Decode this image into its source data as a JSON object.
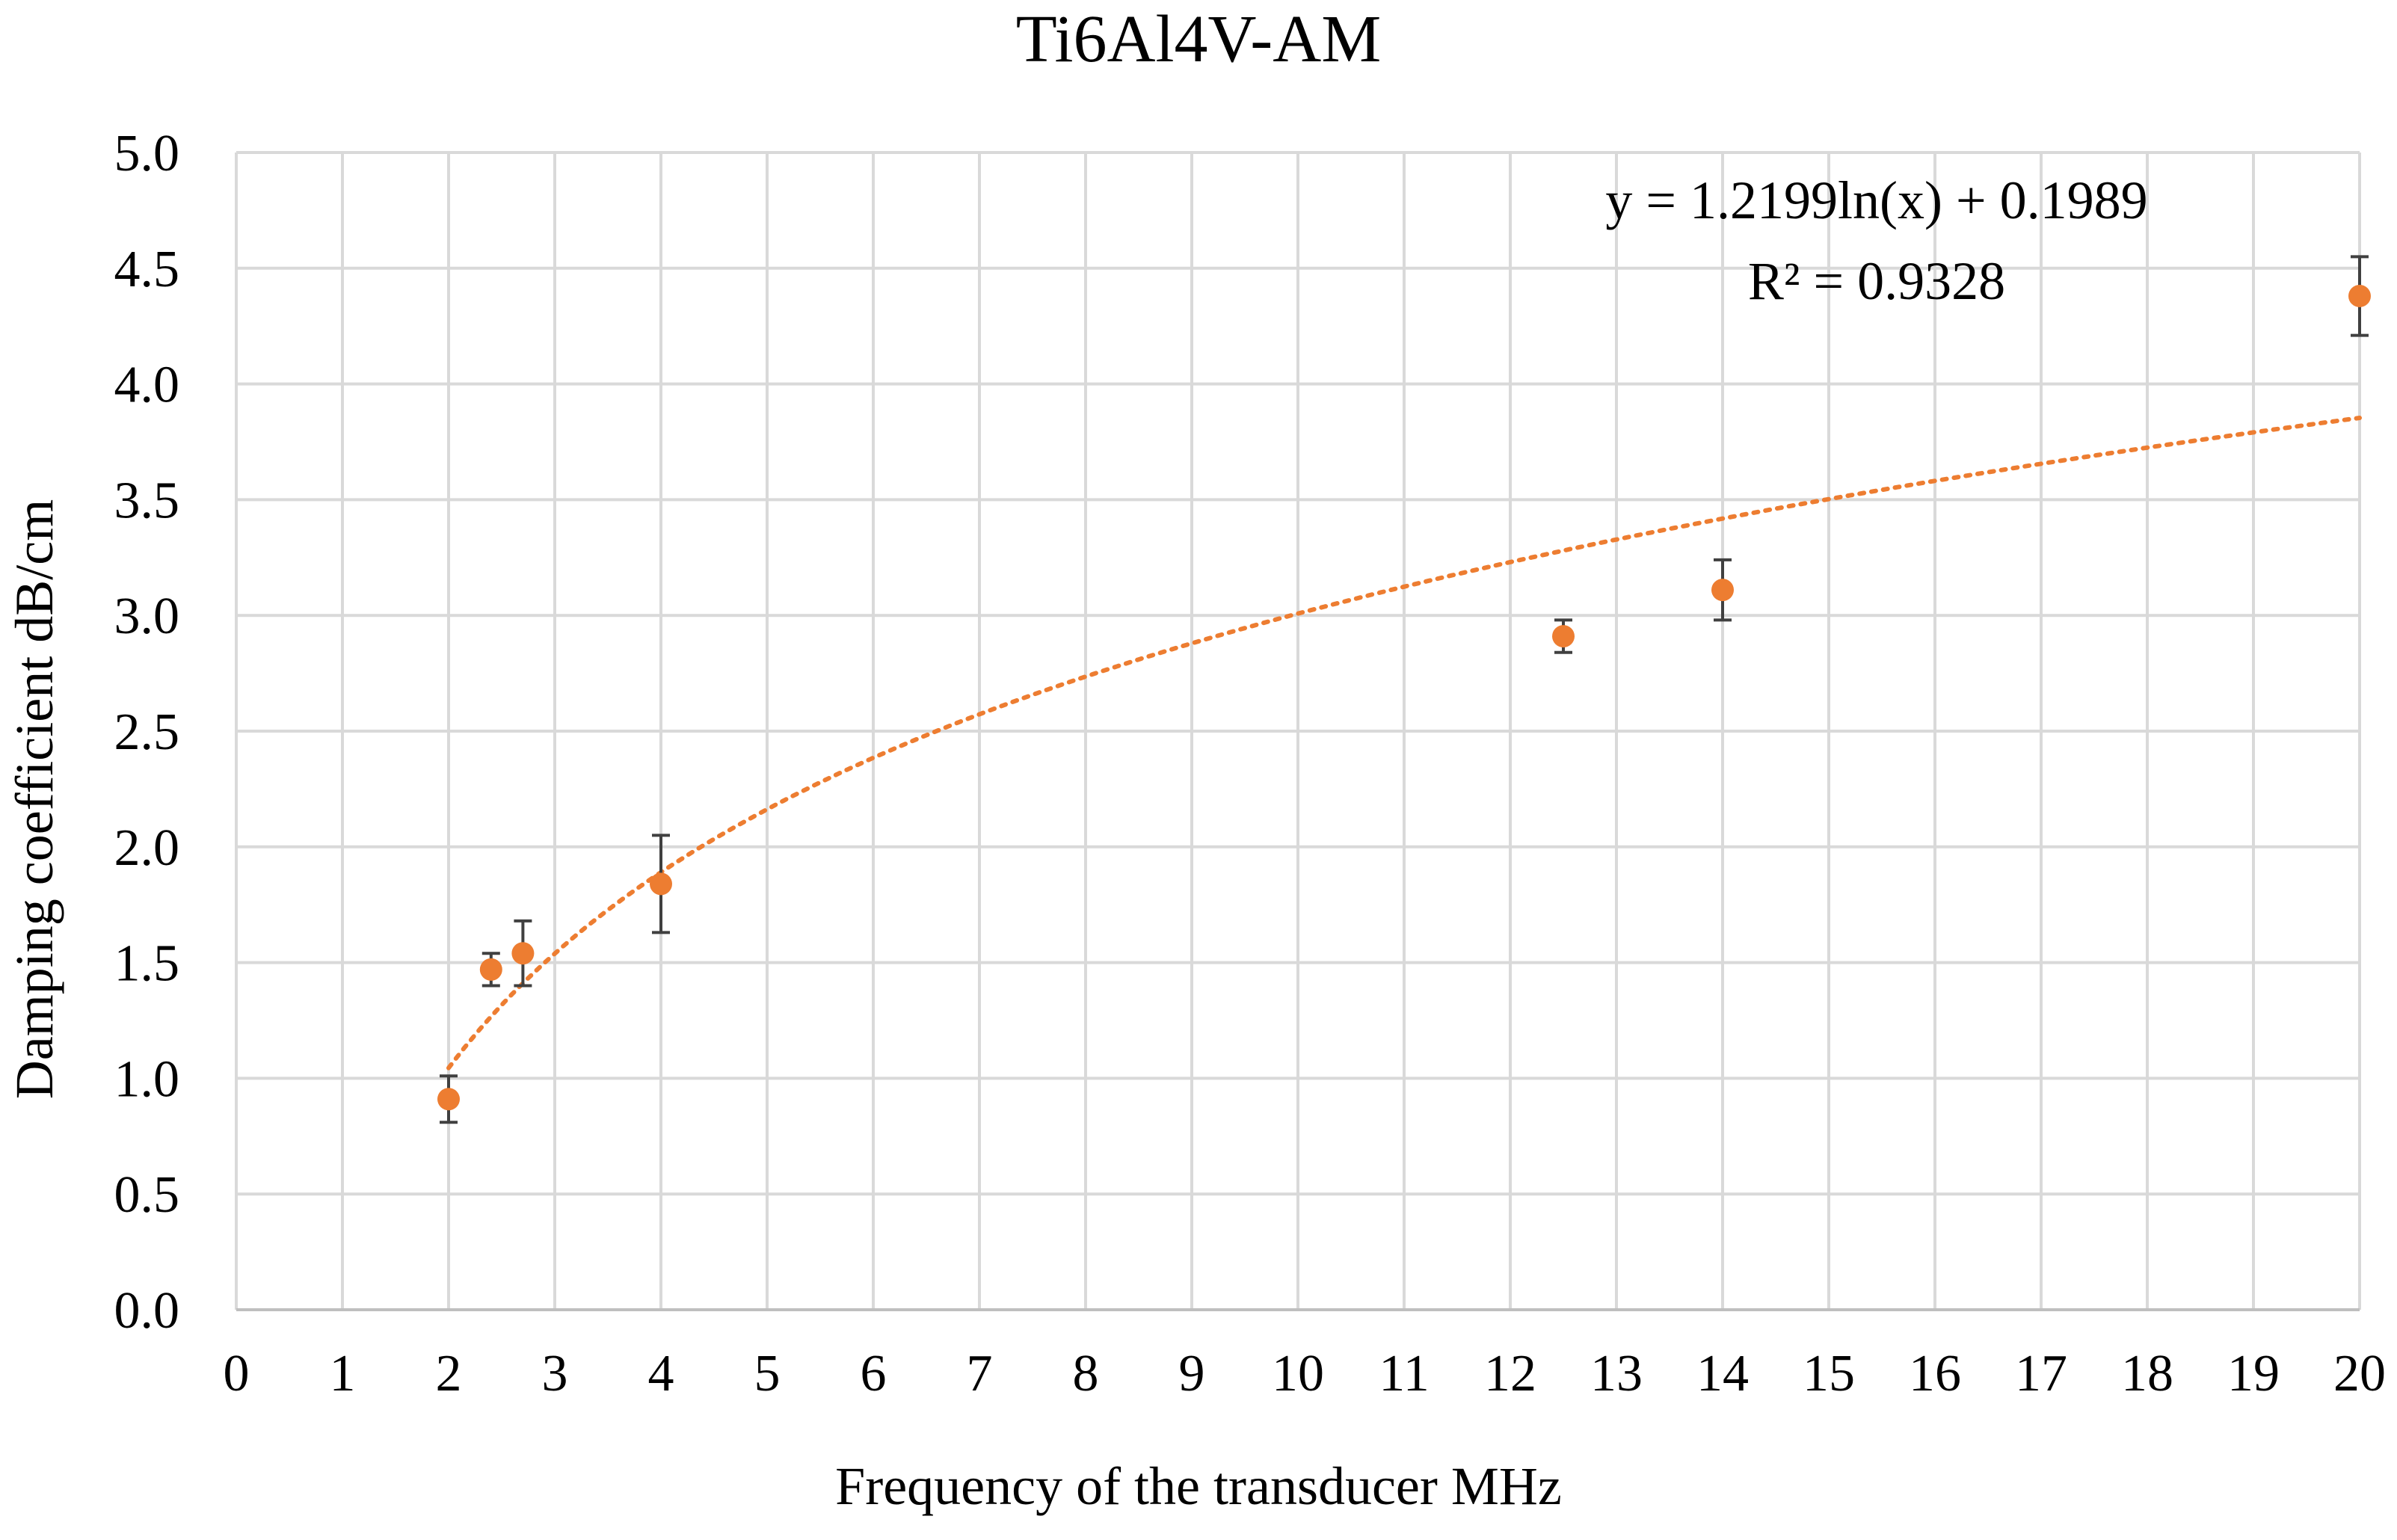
{
  "chart_data": {
    "type": "scatter",
    "title": "Ti6Al4V-AM",
    "xlabel": "Frequency of the transducer MHz",
    "ylabel": "Damping coefficient dB/cm",
    "xlim": [
      0,
      20
    ],
    "ylim": [
      0,
      5
    ],
    "x_ticks": [
      "0",
      "1",
      "2",
      "3",
      "4",
      "5",
      "6",
      "7",
      "8",
      "9",
      "10",
      "11",
      "12",
      "13",
      "14",
      "15",
      "16",
      "17",
      "18",
      "19",
      "20"
    ],
    "y_ticks": [
      "0.0",
      "0.5",
      "1.0",
      "1.5",
      "2.0",
      "2.5",
      "3.0",
      "3.5",
      "4.0",
      "4.5",
      "5.0"
    ],
    "grid": true,
    "series": [
      {
        "name": "Ti6Al4V-AM",
        "color": "#ed7d31",
        "points": [
          {
            "x": 2.0,
            "y": 0.91,
            "err": 0.1
          },
          {
            "x": 2.4,
            "y": 1.47,
            "err": 0.07
          },
          {
            "x": 2.7,
            "y": 1.54,
            "err": 0.14
          },
          {
            "x": 4.0,
            "y": 1.84,
            "err": 0.21
          },
          {
            "x": 12.5,
            "y": 2.91,
            "err": 0.07
          },
          {
            "x": 14.0,
            "y": 3.11,
            "err": 0.13
          },
          {
            "x": 20.0,
            "y": 4.38,
            "err": 0.17
          }
        ]
      }
    ],
    "trendline": {
      "type": "logarithmic",
      "a": 1.2199,
      "b": 0.1989,
      "x_range": [
        2,
        20
      ],
      "color": "#ed7d31",
      "equation_label": "y = 1.2199ln(x) + 0.1989",
      "r2_label": "R² = 0.9328"
    }
  }
}
